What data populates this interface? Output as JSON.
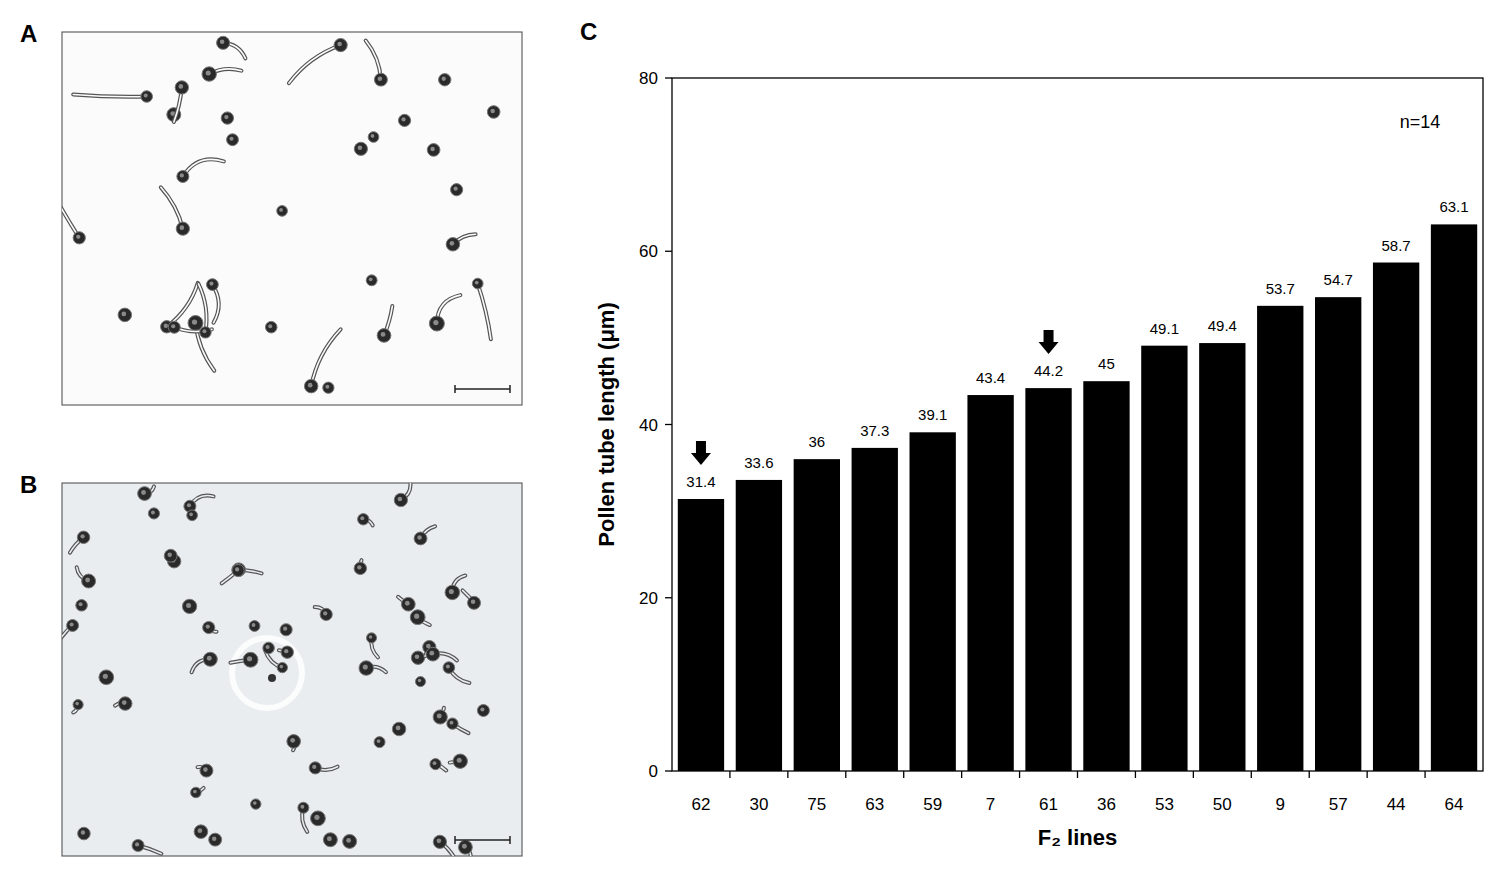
{
  "panel_labels": [
    "A",
    "B"
  ],
  "chart_data": {
    "type": "bar",
    "panel_label": "C",
    "x_label": "F₂ lines",
    "y_label": "Pollen  tube length (μm)",
    "categories": [
      "62",
      "30",
      "75",
      "63",
      "59",
      "7",
      "61",
      "36",
      "53",
      "50",
      "9",
      "57",
      "44",
      "64"
    ],
    "values": [
      31.4,
      33.6,
      36,
      37.3,
      39.1,
      43.4,
      44.2,
      45,
      49.1,
      49.4,
      53.7,
      54.7,
      58.7,
      63.1
    ],
    "color": "#000000",
    "ylim": [
      0,
      80
    ],
    "yticks": [
      0,
      20,
      40,
      60,
      80
    ],
    "data_labels": true,
    "grid": false,
    "annotations": [
      {
        "text": "n=14"
      },
      {
        "marker": "arrow",
        "category": "62"
      },
      {
        "marker": "arrow",
        "category": "61"
      }
    ]
  }
}
